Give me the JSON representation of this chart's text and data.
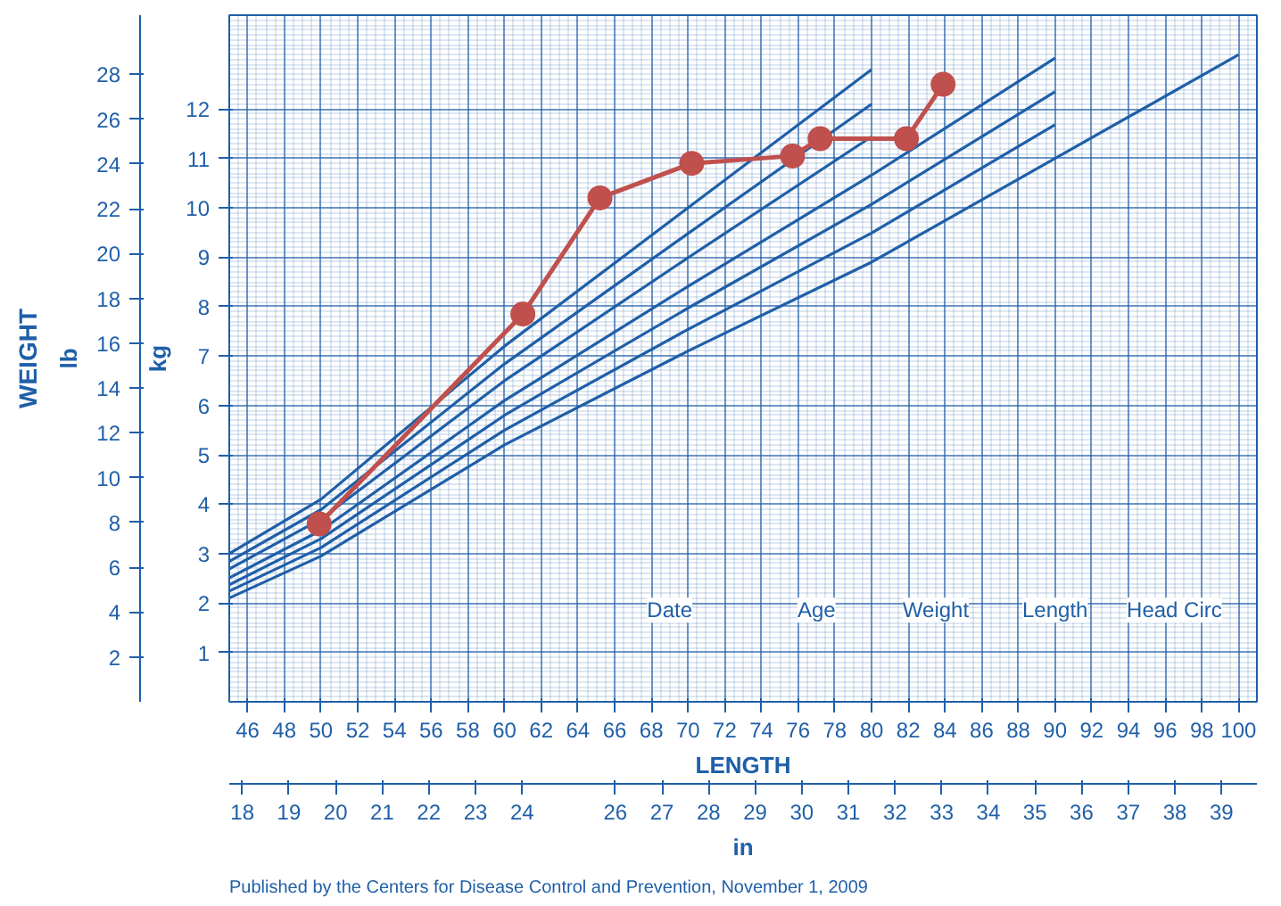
{
  "chart_data": {
    "type": "line",
    "xlabel": "LENGTH",
    "ylabel": "kg",
    "y2label": "lb",
    "xlim": [
      45,
      101
    ],
    "xticks": [
      46,
      48,
      50,
      52,
      54,
      56,
      58,
      60,
      62,
      64,
      66,
      68,
      70,
      72,
      74,
      76,
      78,
      80,
      82,
      84,
      86,
      88,
      90,
      92,
      94,
      96,
      98,
      100
    ],
    "x2label": "in",
    "x2lim": [
      17.72,
      39.76
    ],
    "x2ticks": [
      18,
      19,
      20,
      21,
      22,
      23,
      24,
      26,
      27,
      28,
      29,
      30,
      31,
      32,
      33,
      34,
      35,
      36,
      37,
      38,
      39
    ],
    "ylim": [
      0,
      13.9
    ],
    "yticks": [
      1,
      2,
      3,
      4,
      5,
      6,
      7,
      8,
      9,
      10,
      11,
      12
    ],
    "y2lim": [
      0,
      30.64
    ],
    "y2ticks": [
      2,
      4,
      6,
      8,
      10,
      12,
      14,
      16,
      18,
      20,
      22,
      24,
      26,
      28
    ],
    "grid": true,
    "series": [
      {
        "color": "#1f5fa8",
        "marker": "none",
        "x": [
          45,
          50,
          60,
          70,
          80,
          90,
          100
        ],
        "values": [
          2.1,
          2.95,
          5.2,
          7.1,
          8.9,
          11.0,
          13.1
        ]
      },
      {
        "color": "#1f5fa8",
        "marker": "none",
        "x": [
          45,
          50,
          60,
          70,
          80,
          90
        ],
        "values": [
          2.24,
          3.12,
          5.5,
          7.54,
          9.49,
          11.68
        ]
      },
      {
        "color": "#1f5fa8",
        "marker": "none",
        "x": [
          45,
          50,
          60,
          70,
          80,
          90
        ],
        "values": [
          2.37,
          3.3,
          5.8,
          7.97,
          10.07,
          12.35
        ]
      },
      {
        "color": "#1f5fa8",
        "marker": "none",
        "x": [
          45,
          50,
          60,
          70,
          80,
          90
        ],
        "values": [
          2.51,
          3.47,
          6.1,
          8.41,
          10.66,
          13.03
        ]
      },
      {
        "color": "#1f5fa8",
        "marker": "none",
        "x": [
          45,
          50,
          60,
          70,
          80
        ],
        "values": [
          2.69,
          3.7,
          6.5,
          8.99,
          11.44
        ]
      },
      {
        "color": "#1f5fa8",
        "marker": "none",
        "x": [
          45,
          50,
          60,
          70,
          80
        ],
        "values": [
          2.84,
          3.89,
          6.84,
          9.48,
          12.1
        ]
      },
      {
        "color": "#1f5fa8",
        "marker": "none",
        "x": [
          45,
          50,
          60,
          70,
          80
        ],
        "values": [
          3.0,
          4.1,
          7.2,
          10.0,
          12.8
        ]
      },
      {
        "color": "#c0504d",
        "marker": "circle",
        "x": [
          49.9,
          61,
          65.2,
          70.2,
          75.7,
          77.2,
          81.9,
          83.9
        ],
        "values": [
          3.6,
          7.85,
          10.2,
          10.9,
          11.05,
          11.4,
          11.4,
          12.5
        ]
      }
    ],
    "annotations": [
      "WEIGHT",
      "Date",
      "Age",
      "Weight",
      "Length",
      "Head Circ",
      "Published by the Centers for Disease Control and Prevention, November 1, 2009"
    ]
  }
}
